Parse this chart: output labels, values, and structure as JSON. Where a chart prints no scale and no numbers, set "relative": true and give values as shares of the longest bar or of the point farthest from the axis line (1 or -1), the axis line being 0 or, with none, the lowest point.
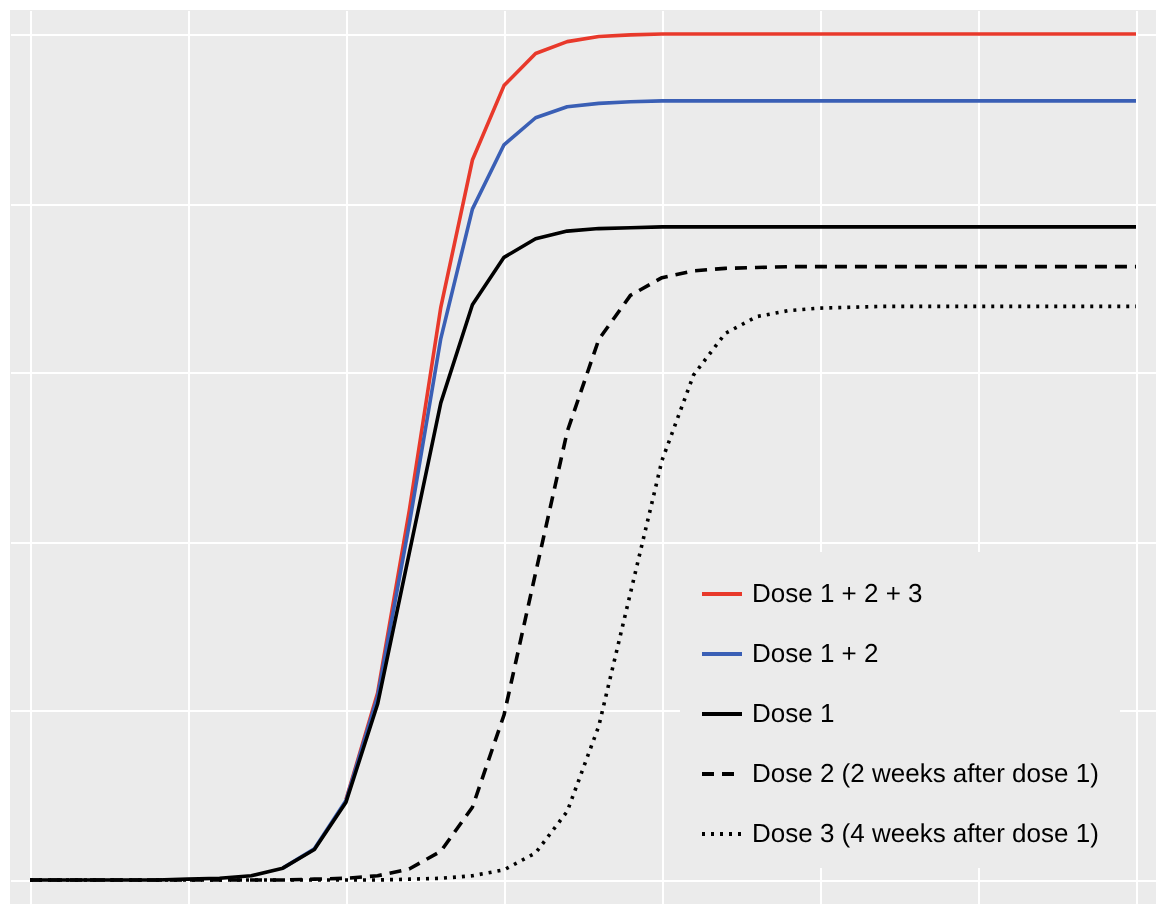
{
  "chart_data": {
    "type": "line",
    "relative": true,
    "grid": true,
    "legend": "bottom right",
    "categories": [
      null,
      null,
      null,
      null,
      null,
      null,
      null,
      null,
      null,
      null,
      null,
      null,
      null,
      null,
      null,
      null,
      null,
      null,
      null,
      null,
      null,
      null,
      null,
      null,
      null,
      null,
      null,
      null,
      null,
      null,
      null,
      null,
      null,
      null,
      null,
      null
    ],
    "series": [
      {
        "name": "Dose 1 + 2 + 3",
        "color": "#e8392b",
        "line_style": "solid",
        "values": [
          null,
          null,
          null,
          null,
          null,
          null,
          null,
          null,
          null,
          null,
          0.095,
          0.221,
          0.436,
          0.677,
          0.851,
          0.939,
          0.977,
          0.991,
          0.997,
          0.999,
          1,
          1,
          1,
          1,
          1,
          1,
          1,
          1,
          1,
          1,
          1,
          1,
          1,
          1,
          1,
          1
        ]
      },
      {
        "name": "Dose 1 + 2",
        "color": "#3a5fb5",
        "line_style": "solid",
        "values": [
          null,
          null,
          null,
          null,
          null,
          null,
          null,
          null,
          0.014,
          0.037,
          0.094,
          0.217,
          0.42,
          0.64,
          0.793,
          0.869,
          0.901,
          0.914,
          0.918,
          0.92,
          0.921,
          0.921,
          0.921,
          0.921,
          0.921,
          0.921,
          0.921,
          0.921,
          0.921,
          0.921,
          0.921,
          0.921,
          0.921,
          0.921,
          0.921,
          0.921
        ]
      },
      {
        "name": "Dose 1",
        "color": "#000000",
        "line_style": "solid",
        "values": [
          0,
          0,
          0,
          0,
          0,
          0.001,
          0.002,
          0.005,
          0.014,
          0.036,
          0.092,
          0.208,
          0.386,
          0.564,
          0.68,
          0.736,
          0.758,
          0.767,
          0.77,
          0.771,
          0.772,
          0.772,
          0.772,
          0.772,
          0.772,
          0.772,
          0.772,
          0.772,
          0.772,
          0.772,
          0.772,
          0.772,
          0.772,
          0.772,
          0.772,
          0.772
        ]
      },
      {
        "name": "Dose 2 (2 weeks after dose 1)",
        "color": "#000000",
        "line_style": "dashed",
        "values": [
          0,
          0,
          0,
          0,
          0,
          0,
          0,
          0,
          0,
          0.001,
          0.002,
          0.005,
          0.013,
          0.034,
          0.086,
          0.195,
          0.363,
          0.53,
          0.639,
          0.691,
          0.712,
          0.72,
          0.723,
          0.724,
          0.725,
          0.725,
          0.725,
          0.725,
          0.725,
          0.725,
          0.725,
          0.725,
          0.725,
          0.725,
          0.725,
          0.725
        ]
      },
      {
        "name": "Dose 3 (4 weeks after dose 1)",
        "color": "#000000",
        "line_style": "dotted",
        "values": [
          0,
          0,
          0,
          0,
          0,
          0,
          0,
          0,
          0,
          0,
          0,
          0,
          0.001,
          0.002,
          0.005,
          0.012,
          0.032,
          0.081,
          0.182,
          0.339,
          0.496,
          0.597,
          0.646,
          0.666,
          0.673,
          0.676,
          0.677,
          0.678,
          0.678,
          0.678,
          0.678,
          0.678,
          0.678,
          0.678,
          0.678,
          0.678
        ]
      }
    ]
  }
}
